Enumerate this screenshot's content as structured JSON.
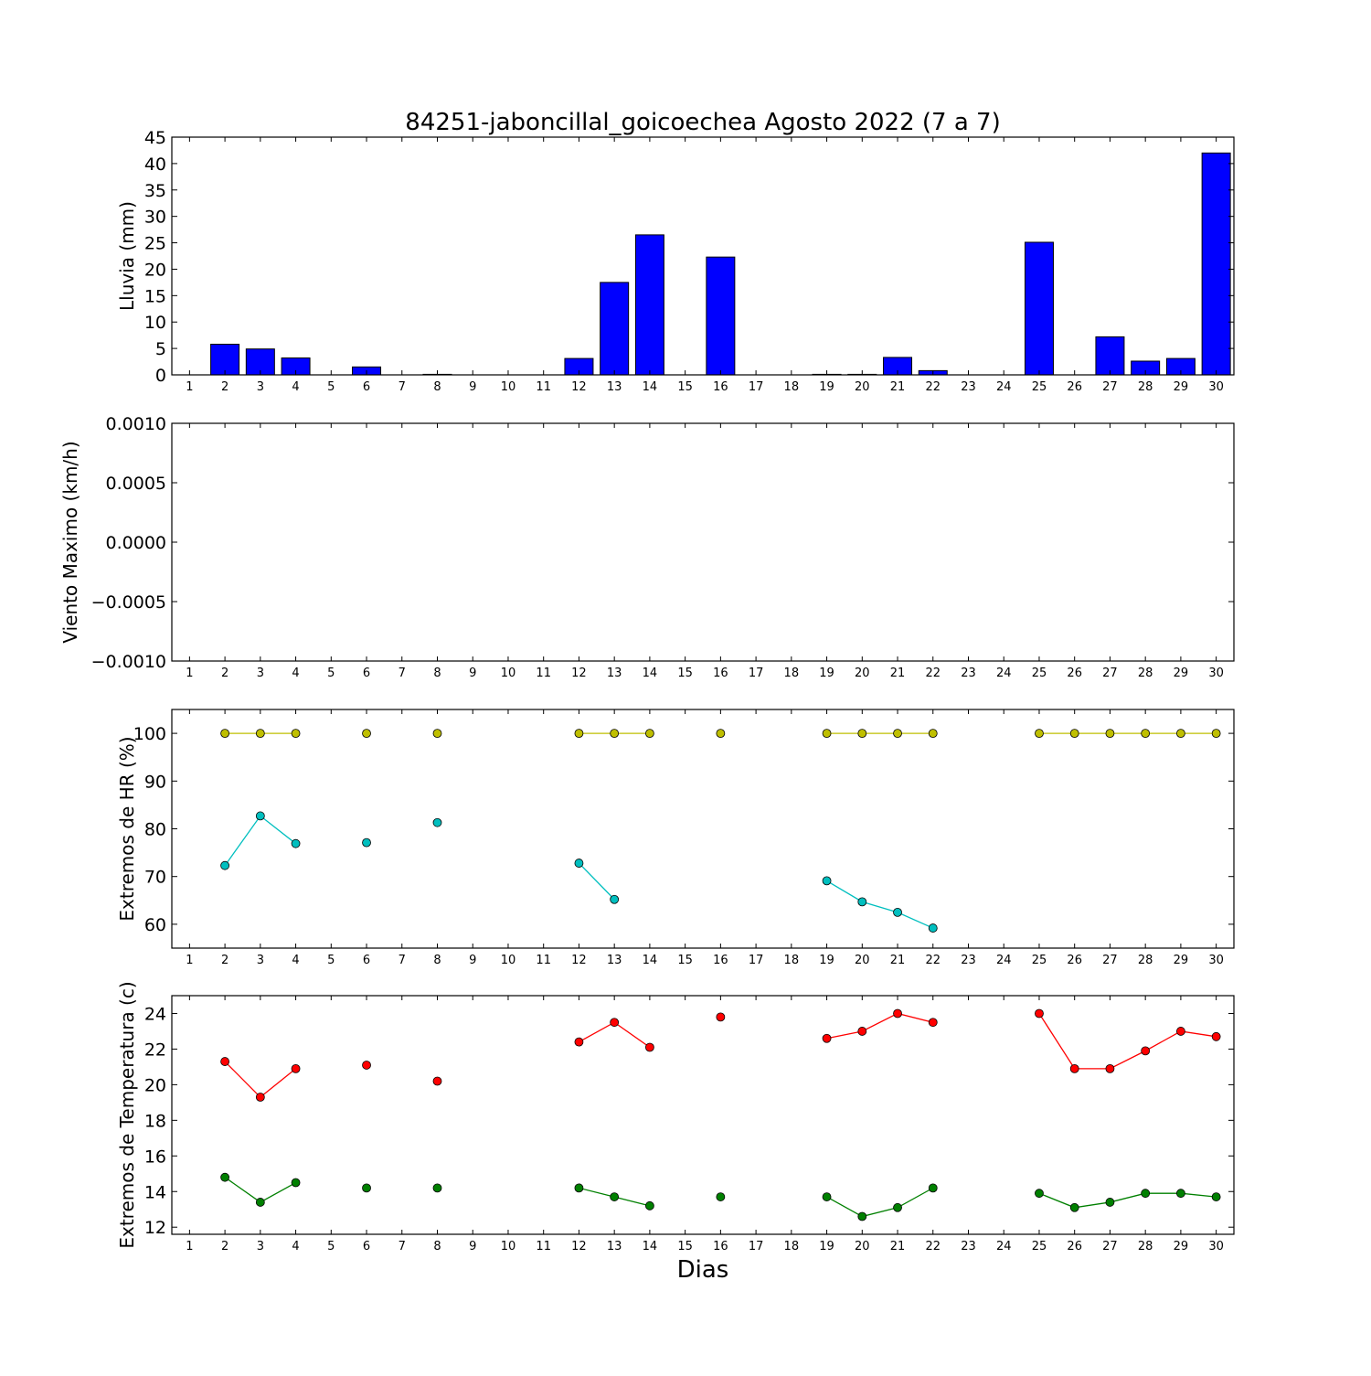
{
  "title": "84251-jaboncillal_goicoechea Agosto 2022  (7 a 7)",
  "xlabel": "Dias",
  "chart_data": [
    {
      "type": "bar",
      "ylabel": "Lluvia (mm)",
      "ylim": [
        0,
        45
      ],
      "yticks": [
        "0",
        "5",
        "10",
        "15",
        "20",
        "25",
        "30",
        "35",
        "40",
        "45"
      ],
      "ytick_values": [
        0,
        5,
        10,
        15,
        20,
        25,
        30,
        35,
        40,
        45
      ],
      "x": [
        1,
        2,
        3,
        4,
        5,
        6,
        7,
        8,
        9,
        10,
        11,
        12,
        13,
        14,
        15,
        16,
        17,
        18,
        19,
        20,
        21,
        22,
        23,
        24,
        25,
        26,
        27,
        28,
        29,
        30
      ],
      "series": [
        {
          "color": "#0000ff",
          "values": [
            0,
            5.8,
            4.9,
            3.2,
            0,
            1.5,
            0,
            0.1,
            0,
            0,
            0,
            3.1,
            17.5,
            26.5,
            0,
            22.3,
            0,
            0,
            0.1,
            0.1,
            3.3,
            0.8,
            0,
            0,
            25.1,
            0,
            7.2,
            2.6,
            3.1,
            42.0
          ]
        }
      ],
      "grid": false
    },
    {
      "type": "line",
      "ylabel": "Viento Maximo (km/h)",
      "ylim": [
        -0.001,
        0.001
      ],
      "yticks": [
        "0.0010",
        "0.0005",
        "0.0000",
        "−0.0005",
        "−0.0010"
      ],
      "ytick_values": [
        0.001,
        0.0005,
        0,
        -0.0005,
        -0.001
      ],
      "x": [
        1,
        2,
        3,
        4,
        5,
        6,
        7,
        8,
        9,
        10,
        11,
        12,
        13,
        14,
        15,
        16,
        17,
        18,
        19,
        20,
        21,
        22,
        23,
        24,
        25,
        26,
        27,
        28,
        29,
        30
      ],
      "series": [],
      "grid": false
    },
    {
      "type": "line",
      "ylabel": "Extremos de HR (%)",
      "ylim": [
        55,
        105
      ],
      "yticks": [
        "60",
        "70",
        "80",
        "90",
        "100"
      ],
      "ytick_values": [
        60,
        70,
        80,
        90,
        100
      ],
      "x": [
        1,
        2,
        3,
        4,
        5,
        6,
        7,
        8,
        9,
        10,
        11,
        12,
        13,
        14,
        15,
        16,
        17,
        18,
        19,
        20,
        21,
        22,
        23,
        24,
        25,
        26,
        27,
        28,
        29,
        30
      ],
      "series": [
        {
          "color": "#bfbf00",
          "values": [
            null,
            100,
            100,
            100,
            null,
            100,
            null,
            100,
            null,
            null,
            null,
            100,
            100,
            100,
            null,
            100,
            null,
            null,
            100,
            100,
            100,
            100,
            null,
            null,
            100,
            100,
            100,
            100,
            100,
            100
          ]
        },
        {
          "color": "#00bfbf",
          "values": [
            null,
            72.3,
            82.7,
            76.9,
            null,
            77.1,
            null,
            81.3,
            null,
            null,
            null,
            72.8,
            65.2,
            null,
            null,
            null,
            null,
            null,
            69.1,
            64.7,
            62.5,
            59.2,
            null,
            null,
            null,
            null,
            null,
            null,
            null,
            null
          ]
        }
      ],
      "grid": false
    },
    {
      "type": "line",
      "ylabel": "Extremos de Temperatura (c)",
      "ylim": [
        11.6,
        25
      ],
      "yticks": [
        "12",
        "14",
        "16",
        "18",
        "20",
        "22",
        "24"
      ],
      "ytick_values": [
        12,
        14,
        16,
        18,
        20,
        22,
        24
      ],
      "x": [
        1,
        2,
        3,
        4,
        5,
        6,
        7,
        8,
        9,
        10,
        11,
        12,
        13,
        14,
        15,
        16,
        17,
        18,
        19,
        20,
        21,
        22,
        23,
        24,
        25,
        26,
        27,
        28,
        29,
        30
      ],
      "series": [
        {
          "color": "#ff0000",
          "values": [
            null,
            21.3,
            19.3,
            20.9,
            null,
            21.1,
            null,
            20.2,
            null,
            null,
            null,
            22.4,
            23.5,
            22.1,
            null,
            23.8,
            null,
            null,
            22.6,
            23.0,
            24.0,
            23.5,
            null,
            null,
            24.0,
            20.9,
            20.9,
            21.9,
            23.0,
            22.7
          ]
        },
        {
          "color": "#008000",
          "values": [
            null,
            14.8,
            13.4,
            14.5,
            null,
            14.2,
            null,
            14.2,
            null,
            null,
            null,
            14.2,
            13.7,
            13.2,
            null,
            13.7,
            null,
            null,
            13.7,
            12.6,
            13.1,
            14.2,
            null,
            null,
            13.9,
            13.1,
            13.4,
            13.9,
            13.9,
            13.7
          ]
        }
      ],
      "grid": false
    }
  ]
}
